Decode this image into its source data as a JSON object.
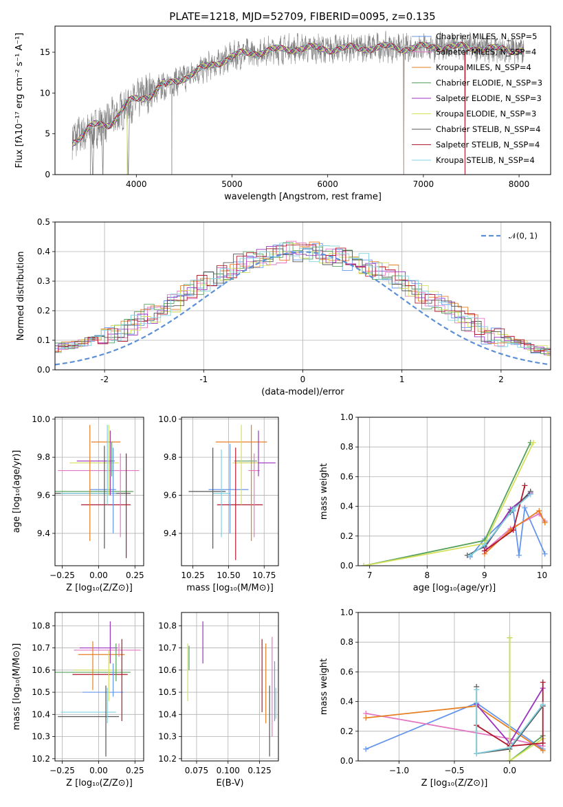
{
  "chart_data": [
    {
      "id": "spectrum",
      "type": "line",
      "title": "PLATE=1218, MJD=52709, FIBERID=0095, z=0.135",
      "xlabel": "wavelength [Angstrom, rest frame]",
      "ylabel": "Flux [fλ10⁻¹⁷ erg cm⁻² s⁻¹ A⁻¹]",
      "xlim": [
        3150,
        8330
      ],
      "ylim": [
        0,
        18.2
      ],
      "xticks": [
        4000,
        5000,
        6000,
        7000,
        8000
      ],
      "yticks": [
        0,
        5,
        10,
        15
      ],
      "legend_position": "top-right",
      "legend": [
        {
          "label": "Chabrier MILES, N_SSP=5",
          "color": "#6495ed"
        },
        {
          "label": "Salpeter MILES, N_SSP=4",
          "color": "#e377c2"
        },
        {
          "label": "Kroupa MILES, N_SSP=4",
          "color": "#e67e22"
        },
        {
          "label": "Chabrier ELODIE, N_SSP=3",
          "color": "#55a05a"
        },
        {
          "label": "Salpeter ELODIE, N_SSP=3",
          "color": "#9b30c0"
        },
        {
          "label": "Kroupa ELODIE, N_SSP=3",
          "color": "#d4e05a"
        },
        {
          "label": "Chabrier STELIB, N_SSP=4",
          "color": "#555555"
        },
        {
          "label": "Salpeter STELIB, N_SSP=4",
          "color": "#b2182b"
        },
        {
          "label": "Kroupa STELIB, N_SSP=4",
          "color": "#7fd0e0"
        }
      ],
      "data_color": "#808080",
      "continuum_x": [
        3330,
        3500,
        3700,
        3900,
        4100,
        4300,
        4600,
        4900,
        5100,
        5400,
        5700,
        6000,
        6300,
        6600,
        6800,
        7000,
        7200,
        7400,
        7600,
        7800,
        8050
      ],
      "continuum_y": [
        4.5,
        5.2,
        6.5,
        8.2,
        10.0,
        10.8,
        12.5,
        14.0,
        14.8,
        15.2,
        15.5,
        15.4,
        15.5,
        15.6,
        15.5,
        15.6,
        15.7,
        15.6,
        15.5,
        15.3,
        15.3
      ]
    },
    {
      "id": "residual-histogram",
      "type": "bar",
      "xlabel": "(data-model)/error",
      "ylabel": "Normed distribution",
      "xlim": [
        -2.5,
        2.5
      ],
      "ylim": [
        0,
        0.5
      ],
      "xticks": [
        -2,
        -1,
        0,
        1,
        2
      ],
      "yticks": [
        0.0,
        0.1,
        0.2,
        0.3,
        0.4,
        0.5
      ],
      "legend_position": "top-right",
      "legend": [
        {
          "label": "𝒩(0, 1)",
          "color": "#5b8fd6",
          "style": "dashed"
        }
      ],
      "bin_width": 0.1,
      "base_values": [
        0.02,
        0.02,
        0.025,
        0.03,
        0.035,
        0.04,
        0.05,
        0.055,
        0.06,
        0.07,
        0.08,
        0.085,
        0.09,
        0.1,
        0.11,
        0.12,
        0.13,
        0.15,
        0.17,
        0.19,
        0.21,
        0.23,
        0.25,
        0.27,
        0.29,
        0.31,
        0.32,
        0.34,
        0.36,
        0.37,
        0.38,
        0.39,
        0.395,
        0.4,
        0.4,
        0.4,
        0.395,
        0.39,
        0.38,
        0.37,
        0.36,
        0.35,
        0.33,
        0.32,
        0.3,
        0.28,
        0.26,
        0.24,
        0.22,
        0.2,
        0.18,
        0.16,
        0.14,
        0.12,
        0.11,
        0.1,
        0.09,
        0.08,
        0.07,
        0.06,
        0.055,
        0.05,
        0.045,
        0.04,
        0.035,
        0.03,
        0.03,
        0.025,
        0.025,
        0.02
      ]
    },
    {
      "id": "z-vs-age",
      "type": "scatter",
      "xlabel": "Z [log₁₀(Z/Z⊙)]",
      "ylabel": "age  [log₁₀(age/yr)]",
      "xlim": [
        -0.3,
        0.31
      ],
      "ylim": [
        9.23,
        10.01
      ],
      "xticks": [
        -0.25,
        0.0,
        0.25
      ],
      "xticklabels": [
        "−0.25",
        "0.00",
        "0.25"
      ],
      "yticks": [
        9.4,
        9.6,
        9.8,
        10.0
      ],
      "points": [
        {
          "x": 0.03,
          "xerr": 0.09,
          "y": 9.63,
          "yerr": [
            0.22,
            0.23
          ],
          "color": "#6495ed"
        },
        {
          "x": 0.0,
          "xerr": 0.28,
          "y": 9.73,
          "yerr": [
            0.07,
            0.06
          ],
          "color": "#e377c2"
        },
        {
          "x": 0.05,
          "xerr": 0.1,
          "y": 9.88,
          "yerr": [
            0.41,
            0.07
          ],
          "color": "#e67e22"
        },
        {
          "x": -0.04,
          "xerr": 0.28,
          "y": 9.62,
          "yerr": [
            0.06,
            0.06
          ],
          "color": "#55a05a"
        },
        {
          "x": -0.02,
          "xerr": 0.13,
          "y": 9.78,
          "yerr": [
            0.05,
            0.04
          ],
          "color": "#9b30c0"
        },
        {
          "x": -0.03,
          "xerr": 0.17,
          "y": 9.77,
          "yerr": [
            0.06,
            0.06
          ],
          "color": "#d4e05a"
        },
        {
          "x": -0.04,
          "xerr": 0.26,
          "y": 9.61,
          "yerr": [
            0.06,
            0.05
          ],
          "color": "#555555"
        },
        {
          "x": 0.05,
          "xerr": 0.17,
          "y": 9.55,
          "yerr": [
            0.05,
            0.03
          ],
          "color": "#b2182b"
        },
        {
          "x": -0.07,
          "xerr": 0.19,
          "y": 9.61,
          "yerr": [
            0.04,
            0.04
          ],
          "color": "#7fd0e0"
        }
      ],
      "vlines": [
        {
          "x": 0.04,
          "y0": 9.32,
          "y1": 9.86,
          "color": "#555555"
        },
        {
          "x": 0.06,
          "y0": 9.55,
          "y1": 9.97,
          "color": "#7fd0e0"
        },
        {
          "x": 0.07,
          "y0": 9.6,
          "y1": 9.97,
          "color": "#d4e05a"
        },
        {
          "x": 0.08,
          "y0": 9.6,
          "y1": 9.94,
          "color": "#9b30c0"
        },
        {
          "x": 0.09,
          "y0": 9.7,
          "y1": 9.88,
          "color": "#55a05a"
        },
        {
          "x": 0.1,
          "y0": 9.4,
          "y1": 9.85,
          "color": "#6495ed"
        },
        {
          "x": 0.15,
          "y0": 9.38,
          "y1": 9.82,
          "color": "#e377c2"
        },
        {
          "x": 0.19,
          "y0": 9.27,
          "y1": 9.82,
          "color": "#b2182b"
        },
        {
          "x": -0.06,
          "y0": 9.36,
          "y1": 9.97,
          "color": "#e67e22"
        }
      ]
    },
    {
      "id": "mass-vs-age",
      "type": "scatter",
      "xlabel": "mass [log₁₀(M/M⊙)]",
      "xlim": [
        10.17,
        10.85
      ],
      "ylim": [
        9.23,
        10.01
      ],
      "xticks": [
        10.25,
        10.5,
        10.75
      ],
      "xticklabels": [
        "10.25",
        "10.50",
        "10.75"
      ],
      "yticks": [
        9.4,
        9.6,
        9.8,
        10.0
      ],
      "points": [
        {
          "x": 10.5,
          "xerr": 0.14,
          "y": 9.63,
          "color": "#6495ed"
        },
        {
          "x": 10.68,
          "xerr": 0.04,
          "y": 9.73,
          "color": "#e377c2"
        },
        {
          "x": 10.59,
          "xerr": 0.18,
          "y": 9.88,
          "color": "#e67e22"
        },
        {
          "x": 10.62,
          "xerr": 0.08,
          "y": 9.78,
          "color": "#55a05a"
        },
        {
          "x": 10.7,
          "xerr": 0.13,
          "y": 9.77,
          "color": "#9b30c0"
        },
        {
          "x": 10.62,
          "xerr": 0.09,
          "y": 9.77,
          "color": "#d4e05a"
        },
        {
          "x": 10.35,
          "xerr": 0.13,
          "y": 9.62,
          "color": "#555555"
        },
        {
          "x": 10.58,
          "xerr": 0.16,
          "y": 9.55,
          "color": "#b2182b"
        },
        {
          "x": 10.45,
          "xerr": 0.06,
          "y": 9.61,
          "color": "#7fd0e0"
        }
      ],
      "vlines": [
        {
          "x": 10.39,
          "y0": 9.32,
          "y1": 9.85,
          "color": "#555555"
        },
        {
          "x": 10.45,
          "y0": 9.38,
          "y1": 9.84,
          "color": "#7fd0e0"
        },
        {
          "x": 10.51,
          "y0": 9.4,
          "y1": 9.87,
          "color": "#6495ed"
        },
        {
          "x": 10.55,
          "y0": 9.26,
          "y1": 9.85,
          "color": "#b2182b"
        },
        {
          "x": 10.59,
          "y0": 9.55,
          "y1": 9.97,
          "color": "#d4e05a"
        },
        {
          "x": 10.66,
          "y0": 9.36,
          "y1": 9.97,
          "color": "#e67e22"
        },
        {
          "x": 10.68,
          "y0": 9.38,
          "y1": 9.82,
          "color": "#e377c2"
        },
        {
          "x": 10.71,
          "y0": 9.7,
          "y1": 9.94,
          "color": "#9b30c0"
        }
      ]
    },
    {
      "id": "age-vs-weight",
      "type": "line",
      "xlabel": "age  [log₁₀(age/yr)]",
      "ylabel": "mass weight",
      "xlim": [
        6.8,
        10.15
      ],
      "ylim": [
        0,
        1.0
      ],
      "xticks": [
        7,
        8,
        9,
        10
      ],
      "yticks": [
        0.0,
        0.2,
        0.4,
        0.6,
        0.8,
        1.0
      ],
      "series": [
        {
          "color": "#6495ed",
          "x": [
            8.75,
            9.0,
            9.5,
            9.6,
            9.7,
            10.05
          ],
          "y": [
            0.06,
            0.18,
            0.37,
            0.07,
            0.39,
            0.08
          ]
        },
        {
          "color": "#e377c2",
          "x": [
            9.0,
            9.45,
            9.95,
            10.05
          ],
          "y": [
            0.1,
            0.25,
            0.35,
            0.3
          ]
        },
        {
          "color": "#e67e22",
          "x": [
            9.0,
            9.45,
            9.95,
            10.05
          ],
          "y": [
            0.08,
            0.24,
            0.37,
            0.29
          ]
        },
        {
          "color": "#55a05a",
          "x": [
            6.9,
            9.0,
            9.8
          ],
          "y": [
            0.0,
            0.17,
            0.83
          ]
        },
        {
          "color": "#9b30c0",
          "x": [
            9.0,
            9.45,
            9.8
          ],
          "y": [
            0.12,
            0.38,
            0.49
          ]
        },
        {
          "color": "#d4e05a",
          "x": [
            6.9,
            9.0,
            9.85
          ],
          "y": [
            0.0,
            0.15,
            0.83
          ]
        },
        {
          "color": "#555555",
          "x": [
            8.7,
            9.0,
            9.45,
            9.8
          ],
          "y": [
            0.07,
            0.13,
            0.36,
            0.5
          ]
        },
        {
          "color": "#b2182b",
          "x": [
            9.0,
            9.5,
            9.7
          ],
          "y": [
            0.1,
            0.24,
            0.54
          ]
        },
        {
          "color": "#7fd0e0",
          "x": [
            8.75,
            9.0,
            9.5,
            9.8
          ],
          "y": [
            0.07,
            0.14,
            0.38,
            0.48
          ]
        }
      ]
    },
    {
      "id": "z-vs-mass",
      "type": "scatter",
      "xlabel": "Z [log₁₀(Z/Z⊙)]",
      "ylabel": "mass [log₁₀(M/M⊙)]",
      "xlim": [
        -0.3,
        0.31
      ],
      "ylim": [
        10.19,
        10.86
      ],
      "xticks": [
        -0.25,
        0.0,
        0.25
      ],
      "xticklabels": [
        "−0.25",
        "0.00",
        "0.25"
      ],
      "yticks": [
        10.2,
        10.3,
        10.4,
        10.5,
        10.6,
        10.7,
        10.8
      ],
      "points": [
        {
          "x": 0.03,
          "xerr": 0.14,
          "y": 10.5,
          "color": "#6495ed"
        },
        {
          "x": 0.06,
          "xerr": 0.23,
          "y": 10.69,
          "color": "#e377c2"
        },
        {
          "x": 0.02,
          "xerr": 0.16,
          "y": 10.67,
          "color": "#e67e22"
        },
        {
          "x": -0.04,
          "xerr": 0.26,
          "y": 10.59,
          "color": "#55a05a"
        },
        {
          "x": 0.0,
          "xerr": 0.13,
          "y": 10.7,
          "color": "#9b30c0"
        },
        {
          "x": -0.02,
          "xerr": 0.15,
          "y": 10.6,
          "color": "#d4e05a"
        },
        {
          "x": -0.07,
          "xerr": 0.21,
          "y": 10.39,
          "color": "#555555"
        },
        {
          "x": 0.01,
          "xerr": 0.19,
          "y": 10.58,
          "color": "#b2182b"
        },
        {
          "x": -0.07,
          "xerr": 0.19,
          "y": 10.41,
          "color": "#7fd0e0"
        }
      ],
      "vlines": [
        {
          "x": 0.05,
          "y0": 10.21,
          "y1": 10.53,
          "color": "#555555"
        },
        {
          "x": 0.06,
          "y0": 10.36,
          "y1": 10.52,
          "color": "#7fd0e0"
        },
        {
          "x": 0.07,
          "y0": 10.46,
          "y1": 10.69,
          "color": "#d4e05a"
        },
        {
          "x": 0.08,
          "y0": 10.63,
          "y1": 10.82,
          "color": "#9b30c0"
        },
        {
          "x": 0.1,
          "y0": 10.48,
          "y1": 10.63,
          "color": "#6495ed"
        },
        {
          "x": 0.12,
          "y0": 10.55,
          "y1": 10.72,
          "color": "#55a05a"
        },
        {
          "x": 0.14,
          "y0": 10.66,
          "y1": 10.72,
          "color": "#e377c2"
        },
        {
          "x": 0.16,
          "y0": 10.37,
          "y1": 10.74,
          "color": "#b2182b"
        },
        {
          "x": -0.04,
          "y0": 10.51,
          "y1": 10.73,
          "color": "#e67e22"
        }
      ]
    },
    {
      "id": "ebv-vs-mass",
      "type": "scatter",
      "xlabel": "E(B-V)",
      "xlim": [
        0.063,
        0.14
      ],
      "ylim": [
        10.19,
        10.86
      ],
      "xticks": [
        0.075,
        0.1,
        0.125
      ],
      "xticklabels": [
        "0.075",
        "0.100",
        "0.125"
      ],
      "yticks": [
        10.2,
        10.3,
        10.4,
        10.5,
        10.6,
        10.7,
        10.8
      ],
      "vlines": [
        {
          "x": 0.068,
          "y0": 10.46,
          "y1": 10.72,
          "color": "#d4e05a"
        },
        {
          "x": 0.069,
          "y0": 10.6,
          "y1": 10.71,
          "color": "#55a05a"
        },
        {
          "x": 0.08,
          "y0": 10.63,
          "y1": 10.82,
          "color": "#9b30c0"
        },
        {
          "x": 0.127,
          "y0": 10.41,
          "y1": 10.74,
          "color": "#b2182b"
        },
        {
          "x": 0.13,
          "y0": 10.36,
          "y1": 10.72,
          "color": "#e67e22"
        },
        {
          "x": 0.133,
          "y0": 10.21,
          "y1": 10.53,
          "color": "#555555"
        },
        {
          "x": 0.135,
          "y0": 10.3,
          "y1": 10.75,
          "color": "#e377c2"
        },
        {
          "x": 0.137,
          "y0": 10.37,
          "y1": 10.64,
          "color": "#6495ed"
        },
        {
          "x": 0.138,
          "y0": 10.38,
          "y1": 10.52,
          "color": "#7fd0e0"
        }
      ]
    },
    {
      "id": "z-vs-weight",
      "type": "line",
      "xlabel": "Z [log₁₀(Z/Z⊙)]",
      "ylabel": "mass weight",
      "xlim": [
        -1.37,
        0.37
      ],
      "ylim": [
        0,
        1.0
      ],
      "xticks": [
        -1.0,
        -0.5,
        0.0
      ],
      "xticklabels": [
        "−1.0",
        "−0.5",
        "0.0"
      ],
      "yticks": [
        0.0,
        0.2,
        0.4,
        0.6,
        0.8,
        1.0
      ],
      "series": [
        {
          "color": "#6495ed",
          "x": [
            -1.3,
            -0.3,
            0.3
          ],
          "y": [
            0.08,
            0.39,
            0.08
          ]
        },
        {
          "color": "#e377c2",
          "x": [
            -1.3,
            0.0,
            0.3
          ],
          "y": [
            0.32,
            0.15,
            0.1
          ]
        },
        {
          "color": "#e67e22",
          "x": [
            -1.3,
            -0.3,
            0.3
          ],
          "y": [
            0.29,
            0.37,
            0.07
          ]
        },
        {
          "color": "#55a05a",
          "x": [
            0.0,
            0.0,
            0.3
          ],
          "y": [
            0.83,
            0.0,
            0.17
          ]
        },
        {
          "color": "#9b30c0",
          "x": [
            -0.3,
            0.0,
            0.3
          ],
          "y": [
            0.38,
            0.12,
            0.49
          ]
        },
        {
          "color": "#d4e05a",
          "x": [
            0.0,
            0.0,
            0.3
          ],
          "y": [
            0.83,
            0.0,
            0.15
          ]
        },
        {
          "color": "#555555",
          "x": [
            -0.3,
            -0.3,
            0.0,
            0.3
          ],
          "y": [
            0.5,
            0.05,
            0.08,
            0.37
          ]
        },
        {
          "color": "#b2182b",
          "x": [
            -0.3,
            0.0,
            0.3,
            0.3
          ],
          "y": [
            0.24,
            0.1,
            0.12,
            0.53
          ]
        },
        {
          "color": "#7fd0e0",
          "x": [
            -0.3,
            -0.3,
            0.0,
            0.3
          ],
          "y": [
            0.48,
            0.05,
            0.09,
            0.38
          ]
        }
      ]
    }
  ]
}
